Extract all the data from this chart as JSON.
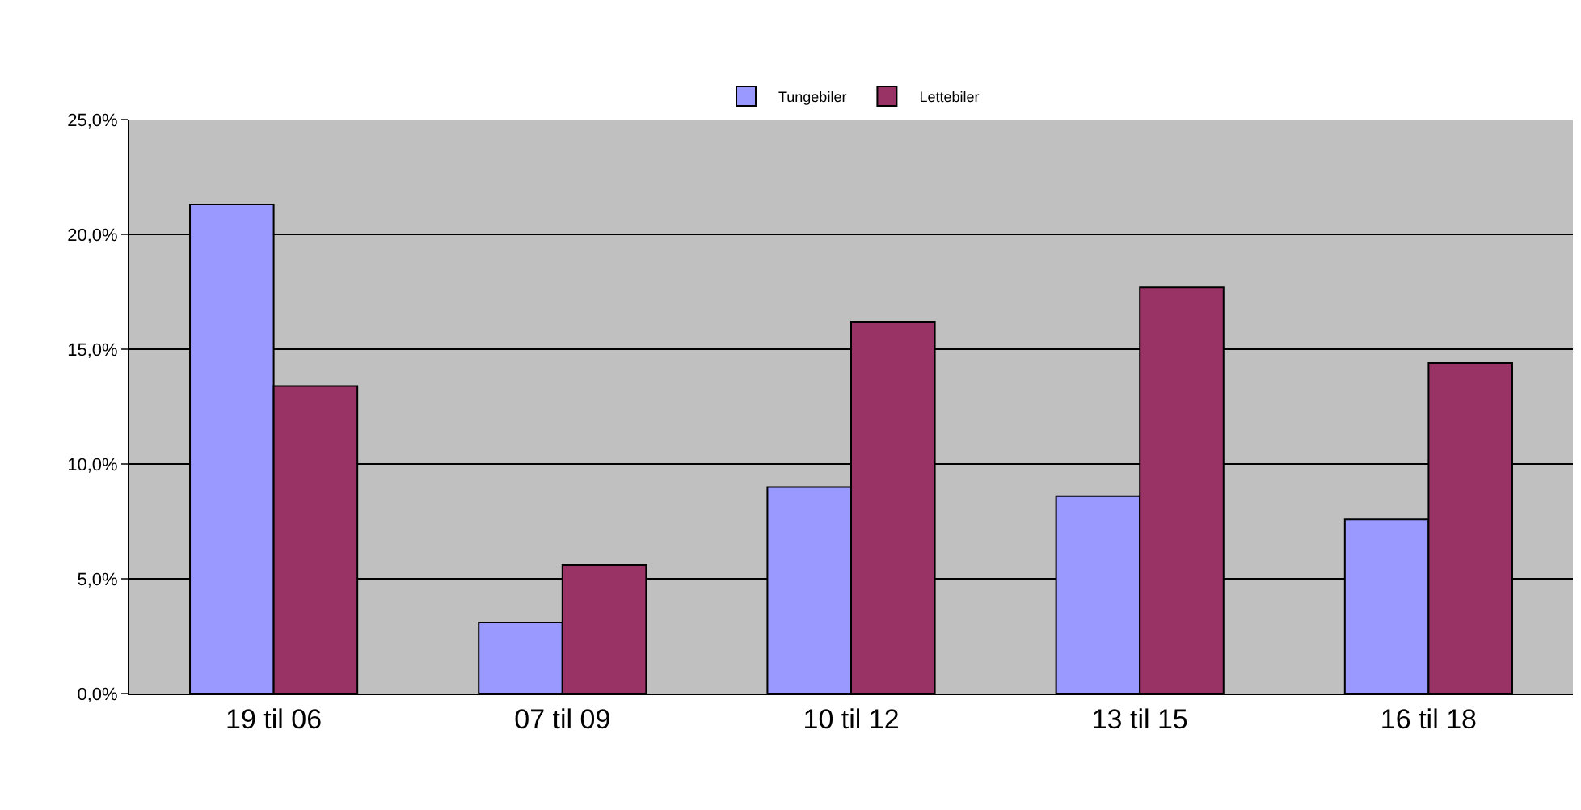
{
  "chart_data": {
    "type": "bar",
    "categories": [
      "19 til 06",
      "07 til 09",
      "10 til 12",
      "13 til 15",
      "16 til 18"
    ],
    "series": [
      {
        "name": "Tungebiler",
        "color": "#9999ff",
        "values": [
          21.3,
          3.1,
          9.0,
          8.6,
          7.6
        ]
      },
      {
        "name": "Lettebiler",
        "color": "#993366",
        "values": [
          13.4,
          5.6,
          16.2,
          17.7,
          14.4
        ]
      }
    ],
    "ylim": [
      0,
      25
    ],
    "yticks": [
      {
        "value": 0,
        "label": "0,0%"
      },
      {
        "value": 5,
        "label": "5,0%"
      },
      {
        "value": 10,
        "label": "10,0%"
      },
      {
        "value": 15,
        "label": "15,0%"
      },
      {
        "value": 20,
        "label": "20,0%"
      },
      {
        "value": 25,
        "label": "25,0%"
      }
    ],
    "grid": "y",
    "legend": "top"
  }
}
